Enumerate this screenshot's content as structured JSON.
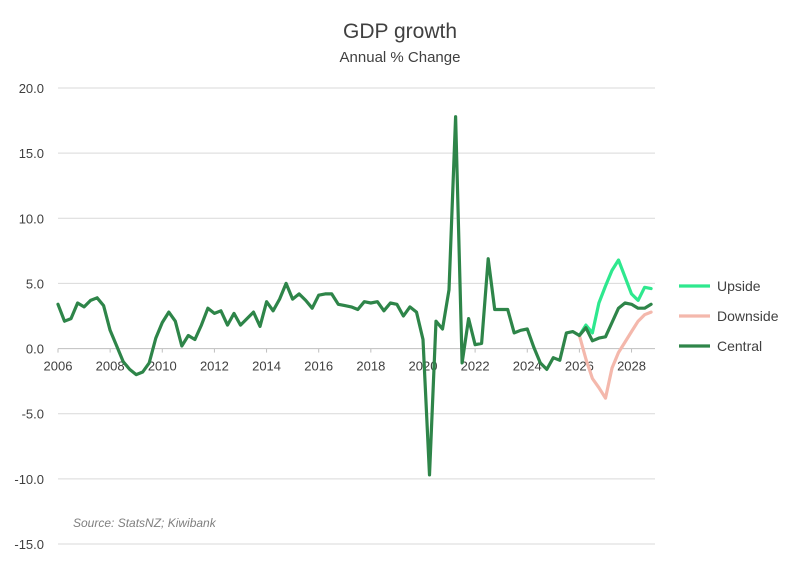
{
  "chart_data": {
    "type": "line",
    "title": "GDP growth",
    "subtitle": "Annual % Change",
    "source": "Source: StatsNZ; Kiwibank",
    "xlim": [
      2006,
      2028.9
    ],
    "ylim": [
      -15,
      20
    ],
    "y_ticks": [
      20,
      15,
      10,
      5,
      0,
      -5,
      -10,
      -15
    ],
    "y_tick_labels": [
      "20.0",
      "15.0",
      "10.0",
      "5.0",
      "0.0",
      "-5.0",
      "-10.0",
      "-15.0"
    ],
    "x_ticks": [
      2006,
      2008,
      2010,
      2012,
      2014,
      2016,
      2018,
      2020,
      2022,
      2024,
      2026,
      2028
    ],
    "x_tick_labels": [
      "2006",
      "2008",
      "2010",
      "2012",
      "2014",
      "2016",
      "2018",
      "2020",
      "2022",
      "2024",
      "2026",
      "2028"
    ],
    "grid": true,
    "legend_position": "right",
    "series": [
      {
        "name": "Upside",
        "color": "#2ee88e",
        "x": [
          2026.0,
          2026.25,
          2026.5,
          2026.75,
          2027.0,
          2027.25,
          2027.5,
          2027.75,
          2028.0,
          2028.25,
          2028.5,
          2028.75
        ],
        "y": [
          1.0,
          1.8,
          1.2,
          3.5,
          4.8,
          6.0,
          6.8,
          5.5,
          4.2,
          3.7,
          4.7,
          4.6
        ]
      },
      {
        "name": "Downside",
        "color": "#f4b8ac",
        "x": [
          2026.0,
          2026.25,
          2026.5,
          2026.75,
          2027.0,
          2027.25,
          2027.5,
          2027.75,
          2028.0,
          2028.25,
          2028.5,
          2028.75
        ],
        "y": [
          1.0,
          -0.8,
          -2.3,
          -3.0,
          -3.8,
          -1.5,
          -0.3,
          0.5,
          1.3,
          2.1,
          2.6,
          2.8
        ]
      },
      {
        "name": "Central",
        "color": "#2e8549",
        "x": [
          2006.0,
          2006.25,
          2006.5,
          2006.75,
          2007.0,
          2007.25,
          2007.5,
          2007.75,
          2008.0,
          2008.25,
          2008.5,
          2008.75,
          2009.0,
          2009.25,
          2009.5,
          2009.75,
          2010.0,
          2010.25,
          2010.5,
          2010.75,
          2011.0,
          2011.25,
          2011.5,
          2011.75,
          2012.0,
          2012.25,
          2012.5,
          2012.75,
          2013.0,
          2013.25,
          2013.5,
          2013.75,
          2014.0,
          2014.25,
          2014.5,
          2014.75,
          2015.0,
          2015.25,
          2015.5,
          2015.75,
          2016.0,
          2016.25,
          2016.5,
          2016.75,
          2017.0,
          2017.25,
          2017.5,
          2017.75,
          2018.0,
          2018.25,
          2018.5,
          2018.75,
          2019.0,
          2019.25,
          2019.5,
          2019.75,
          2020.0,
          2020.25,
          2020.5,
          2020.75,
          2021.0,
          2021.25,
          2021.5,
          2021.75,
          2022.0,
          2022.25,
          2022.5,
          2022.75,
          2023.0,
          2023.25,
          2023.5,
          2023.75,
          2024.0,
          2024.25,
          2024.5,
          2024.75,
          2025.0,
          2025.25,
          2025.5,
          2025.75,
          2026.0,
          2026.25,
          2026.5,
          2026.75,
          2027.0,
          2027.25,
          2027.5,
          2027.75,
          2028.0,
          2028.25,
          2028.5,
          2028.75
        ],
        "y": [
          3.4,
          2.1,
          2.3,
          3.5,
          3.2,
          3.7,
          3.9,
          3.3,
          1.4,
          0.2,
          -1.0,
          -1.6,
          -2.0,
          -1.8,
          -1.1,
          0.8,
          2.0,
          2.8,
          2.1,
          0.2,
          1.0,
          0.7,
          1.8,
          3.1,
          2.7,
          2.9,
          1.8,
          2.7,
          1.8,
          2.3,
          2.8,
          1.7,
          3.6,
          2.9,
          3.8,
          5.0,
          3.8,
          4.2,
          3.7,
          3.1,
          4.1,
          4.2,
          4.2,
          3.4,
          3.3,
          3.2,
          3.0,
          3.6,
          3.5,
          3.6,
          2.9,
          3.5,
          3.4,
          2.5,
          3.2,
          2.8,
          0.7,
          -9.7,
          2.1,
          1.5,
          4.5,
          17.8,
          -1.1,
          2.3,
          0.3,
          0.4,
          6.9,
          3.0,
          3.0,
          3.0,
          1.2,
          1.4,
          1.5,
          0.1,
          -1.1,
          -1.6,
          -0.7,
          -0.9,
          1.2,
          1.3,
          1.0,
          1.6,
          0.6,
          0.8,
          0.9,
          2.0,
          3.1,
          3.5,
          3.4,
          3.1,
          3.1,
          3.4
        ]
      }
    ]
  }
}
